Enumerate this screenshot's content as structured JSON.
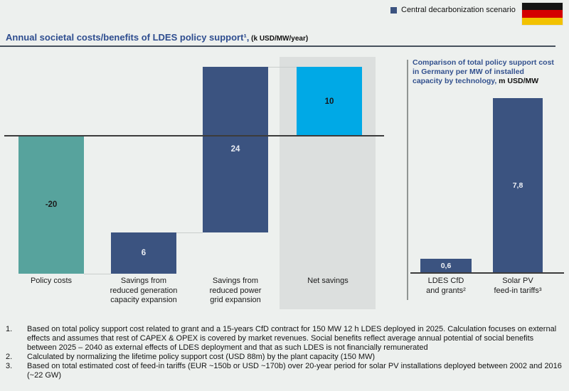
{
  "header": {
    "legend_label": "Central decarbonization scenario",
    "legend_color": "#3b5380",
    "flag_name": "germany-flag",
    "flag_colors": [
      "#141414",
      "#d40000",
      "#f2c200"
    ],
    "title": "Annual societal costs/benefits of LDES policy support¹,",
    "title_unit": " (k USD/MW/year)"
  },
  "right_panel": {
    "title": "Comparison of total policy support cost\nin Germany per MW of installed\ncapacity by technology,",
    "title_unit": " m USD/MW"
  },
  "chart_data": [
    {
      "type": "bar",
      "subtype": "waterfall",
      "title": "Annual societal costs/benefits of LDES policy support",
      "unit": "k USD/MW/year",
      "legend": [
        "Central decarbonization scenario"
      ],
      "categories": [
        "Policy costs",
        "Savings from\nreduced generation\ncapacity expansion",
        "Savings from\nreduced power\ngrid expansion",
        "Net savings"
      ],
      "values": [
        -20,
        6,
        24,
        10
      ],
      "value_labels": [
        "-20",
        "6",
        "24",
        "10"
      ],
      "is_total": [
        false,
        false,
        false,
        true
      ],
      "bar_colors": [
        "#57a39d",
        "#3b5380",
        "#3b5380",
        "#00a9e6"
      ],
      "value_label_colors": [
        "#1c1c1c",
        "#e9ecf2",
        "#e9ecf2",
        "#15181c"
      ],
      "baseline_value": 0,
      "highlighted_category": "Net savings",
      "grid": false,
      "legend_position": "top-right"
    },
    {
      "type": "bar",
      "title": "Comparison of total policy support cost in Germany per MW of installed capacity by technology",
      "unit": "m USD/MW",
      "categories": [
        "LDES CfD\nand grants²",
        "Solar PV\nfeed-in tariffs³"
      ],
      "values": [
        0.6,
        7.8
      ],
      "value_labels": [
        "0,6",
        "7,8"
      ],
      "bar_color": "#3b5380",
      "value_label_color": "#eef0f5",
      "ylim": [
        0,
        8
      ],
      "grid": false
    }
  ],
  "footnotes": [
    {
      "num": "1.",
      "text": "Based on total policy support cost related to grant and a 15-years CfD contract for 150 MW 12 h LDES deployed in 2025. Calculation focuses on external effects and assumes that rest of CAPEX & OPEX is covered by market revenues. Social benefits reflect average annual potential of social benefits between 2025 – 2040 as external effects of LDES deployment and that as such LDES is not financially remunerated"
    },
    {
      "num": "2.",
      "text": "Calculated by normalizing the lifetime policy support cost (USD 88m) by the plant capacity (150 MW)"
    },
    {
      "num": "3.",
      "text": "Based on total estimated cost of feed-in tariffs (EUR ~150b or USD ~170b) over 20-year period for solar PV installations deployed between 2002 and 2016 (~22 GW)"
    }
  ]
}
